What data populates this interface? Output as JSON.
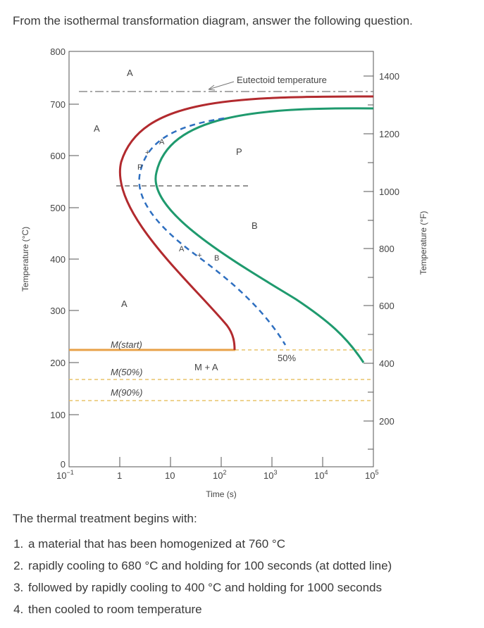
{
  "question": "From the isothermal transformation diagram, answer the following question.",
  "diagram": {
    "y_left_label": "Temperature (°C)",
    "y_right_label": "Temperature (°F)",
    "x_label": "Time (s)",
    "y_left_ticks": [
      "800",
      "700",
      "600",
      "500",
      "400",
      "300",
      "200",
      "100",
      "0"
    ],
    "y_right_ticks": [
      "1400",
      "1200",
      "1000",
      "800",
      "600",
      "400",
      "200"
    ],
    "x_ticks": [
      "10",
      "1",
      "10",
      "10",
      "10",
      "10",
      "10"
    ],
    "x_tick_exponents": [
      "−1",
      "",
      "",
      "2",
      "3",
      "4",
      "5"
    ],
    "labels": {
      "eutectoid": "Eutectoid temperature",
      "a_top": "A",
      "a_left": "A",
      "a_mid": "A",
      "a_curve": "A",
      "a_plus": "A",
      "p_curve": "P",
      "p_right": "P",
      "b_curve": "B",
      "b_right": "B",
      "pct50": "50%",
      "m_start": "M(start)",
      "m50": "M(50%)",
      "m90": "M(90%)",
      "m_plus_a": "M + A",
      "plus1": "+",
      "plus2": "+"
    },
    "colors": {
      "start_curve": "#b22a2e",
      "end_curve": "#1f9a6e",
      "dashed_curve": "#2e6fc0",
      "m_start_line": "#e8a248",
      "m_dotted": "#e8c36a"
    }
  },
  "treatment": {
    "intro": "The thermal treatment begins with:",
    "steps": [
      "a material that has been homogenized at 760 °C",
      "rapidly cooling to 680 °C and holding for 100 seconds (at dotted line)",
      "followed by rapidly cooling to 400 °C and holding for 1000 seconds",
      "then cooled to room temperature"
    ]
  }
}
